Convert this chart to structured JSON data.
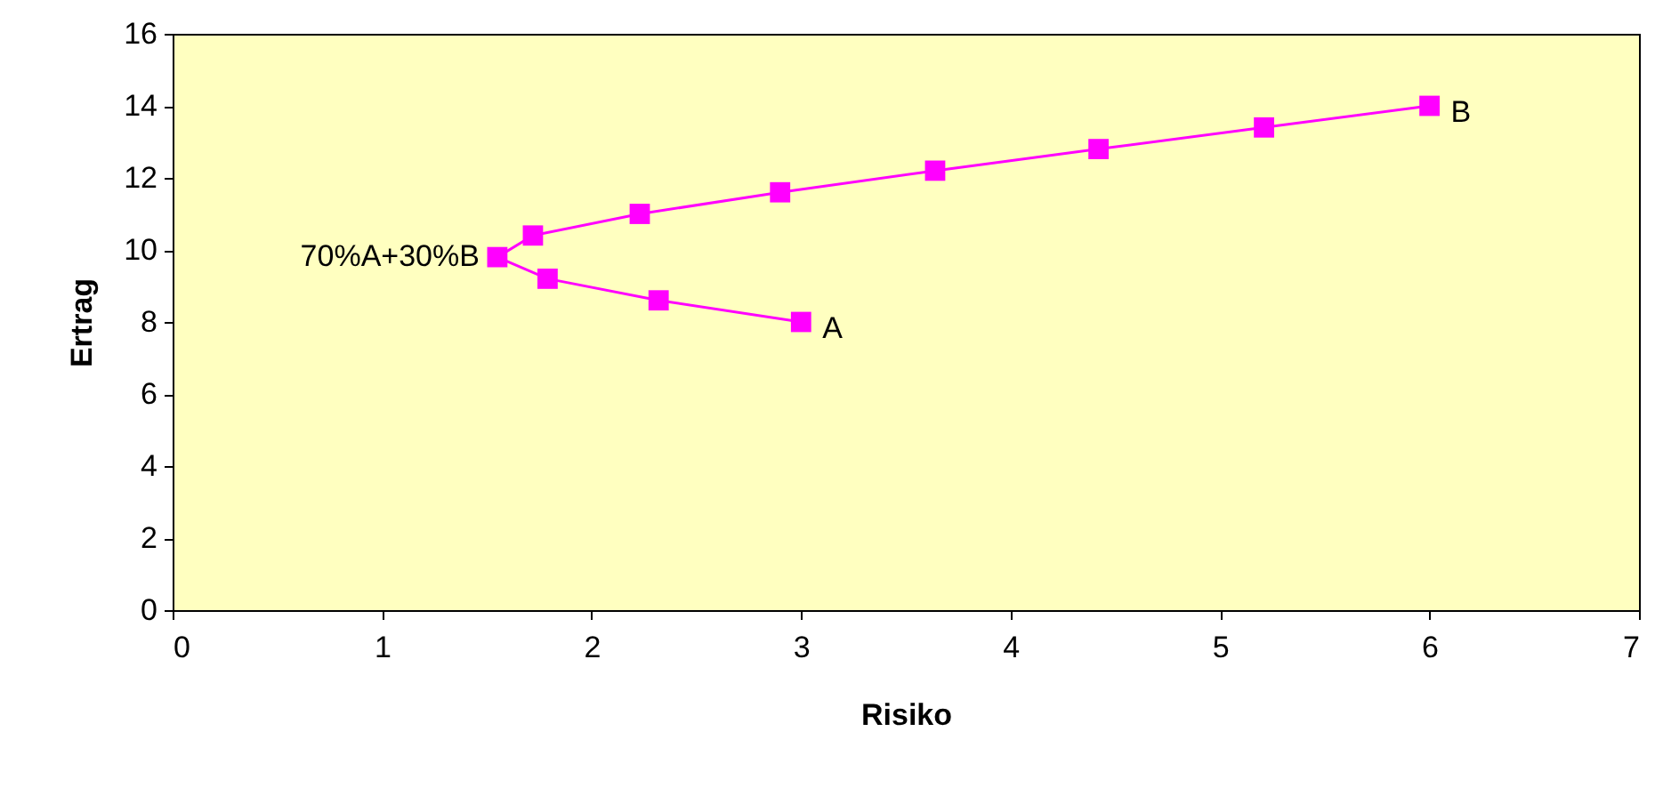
{
  "chart_data": {
    "type": "line",
    "xlabel": "Risiko",
    "ylabel": "Ertrag",
    "x": [
      3.0,
      2.32,
      1.79,
      1.55,
      1.72,
      2.23,
      2.9,
      3.64,
      4.42,
      5.21,
      6.0
    ],
    "series": [
      {
        "color": "#ff00ff",
        "values": [
          8,
          8.6,
          9.2,
          9.8,
          10.4,
          11.0,
          11.6,
          12.2,
          12.8,
          13.4,
          14
        ]
      }
    ],
    "xlim": [
      0,
      7
    ],
    "xticks": [
      0,
      1,
      2,
      3,
      4,
      5,
      6,
      7
    ],
    "ylim": [
      0,
      16
    ],
    "yticks": [
      0,
      2,
      4,
      6,
      8,
      10,
      12,
      14,
      16
    ],
    "marker": "square",
    "line_style": "solid",
    "grid": false,
    "annotations": [
      {
        "text": "A",
        "x": 3.0,
        "y": 8
      },
      {
        "text": "B",
        "x": 6.0,
        "y": 14
      },
      {
        "text": "70%A+30%B",
        "x": 1.55,
        "y": 9.8
      }
    ]
  }
}
